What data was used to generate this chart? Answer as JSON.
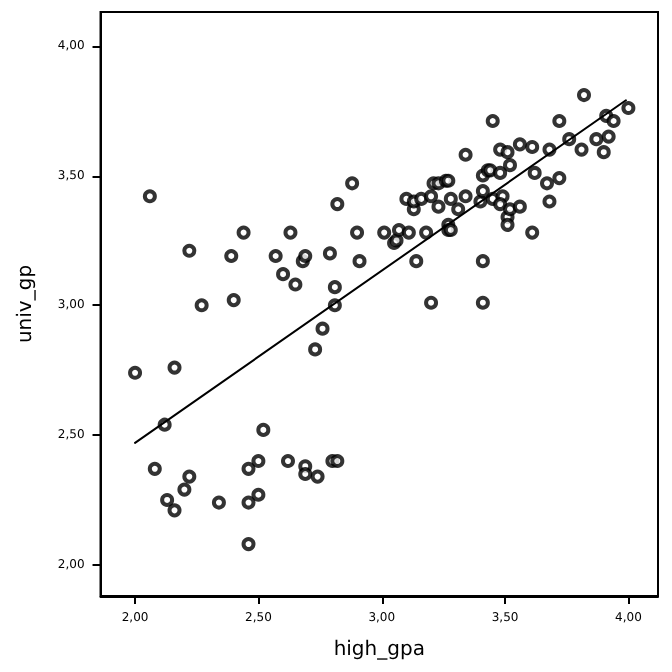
{
  "chart_data": {
    "type": "scatter",
    "xlabel": "high_gpa",
    "ylabel": "univ_gp",
    "xlim": [
      1.86,
      4.12
    ],
    "ylim": [
      1.88,
      4.13
    ],
    "xticks": [
      {
        "value": 2,
        "label": "2,00"
      },
      {
        "value": 2.5,
        "label": "2,50"
      },
      {
        "value": 3,
        "label": "3,00"
      },
      {
        "value": 3.5,
        "label": "3,50"
      },
      {
        "value": 4,
        "label": "4,00"
      }
    ],
    "yticks": [
      {
        "value": 2,
        "label": "2,00"
      },
      {
        "value": 2.5,
        "label": "2,50"
      },
      {
        "value": 3,
        "label": "3,00"
      },
      {
        "value": 3.5,
        "label": "3,50"
      },
      {
        "value": 4,
        "label": "4,00"
      }
    ],
    "grid": false,
    "marker": "circle",
    "series": [
      {
        "color": "#000000",
        "x": [
          2.0,
          2.06,
          2.08,
          2.12,
          2.13,
          2.16,
          2.16,
          2.2,
          2.22,
          2.22,
          2.27,
          2.34,
          2.39,
          2.4,
          2.44,
          2.46,
          2.46,
          2.46,
          2.5,
          2.5,
          2.52,
          2.57,
          2.6,
          2.62,
          2.63,
          2.65,
          2.68,
          2.69,
          2.69,
          2.69,
          2.73,
          2.74,
          2.76,
          2.79,
          2.8,
          2.81,
          2.81,
          2.82,
          2.82,
          2.88,
          2.9,
          2.91,
          3.01,
          3.05,
          3.06,
          3.07,
          3.1,
          3.11,
          3.13,
          3.13,
          3.14,
          3.16,
          3.18,
          3.2,
          3.2,
          3.21,
          3.23,
          3.23,
          3.26,
          3.27,
          3.27,
          3.27,
          3.28,
          3.28,
          3.31,
          3.34,
          3.34,
          3.4,
          3.41,
          3.41,
          3.41,
          3.41,
          3.43,
          3.44,
          3.45,
          3.45,
          3.48,
          3.48,
          3.49,
          3.48,
          3.51,
          3.51,
          3.51,
          3.52,
          3.52,
          3.56,
          3.56,
          3.61,
          3.61,
          3.62,
          3.67,
          3.68,
          3.68,
          3.72,
          3.72,
          3.76,
          3.81,
          3.82,
          3.87,
          3.9,
          3.91,
          3.92,
          3.94,
          4.0
        ],
        "values": [
          2.74,
          3.42,
          2.37,
          2.54,
          2.25,
          2.76,
          2.21,
          2.29,
          2.34,
          3.21,
          3.0,
          2.24,
          3.19,
          3.02,
          3.28,
          2.37,
          2.24,
          2.08,
          2.4,
          2.27,
          2.52,
          3.19,
          3.12,
          2.4,
          3.28,
          3.08,
          3.17,
          3.19,
          2.38,
          2.35,
          2.83,
          2.34,
          2.91,
          3.2,
          2.4,
          3.0,
          3.07,
          3.39,
          2.4,
          3.47,
          3.28,
          3.17,
          3.28,
          3.24,
          3.25,
          3.29,
          3.41,
          3.28,
          3.37,
          3.4,
          3.17,
          3.41,
          3.28,
          3.01,
          3.42,
          3.47,
          3.47,
          3.38,
          3.48,
          3.48,
          3.31,
          3.29,
          3.41,
          3.29,
          3.37,
          3.58,
          3.42,
          3.4,
          3.5,
          3.44,
          3.17,
          3.01,
          3.52,
          3.52,
          3.41,
          3.71,
          3.6,
          3.51,
          3.42,
          3.39,
          3.59,
          3.34,
          3.31,
          3.54,
          3.37,
          3.62,
          3.38,
          3.61,
          3.28,
          3.51,
          3.47,
          3.4,
          3.6,
          3.71,
          3.49,
          3.64,
          3.6,
          3.81,
          3.64,
          3.59,
          3.73,
          3.65,
          3.71,
          3.76
        ]
      },
      {
        "type": "line",
        "color": "#000000",
        "marker": "none",
        "line_style": "solid",
        "x": [
          2.0,
          3.99
        ],
        "values": [
          2.47,
          3.79
        ]
      }
    ]
  }
}
